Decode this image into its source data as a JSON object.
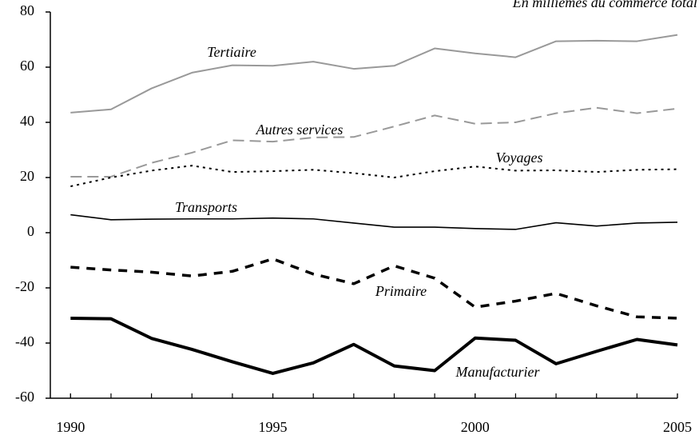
{
  "chart_data": {
    "type": "line",
    "subtitle": "En millièmes du commerce total",
    "x": [
      1990,
      1991,
      1992,
      1993,
      1994,
      1995,
      1996,
      1997,
      1998,
      1999,
      2000,
      2001,
      2002,
      2003,
      2004,
      2005
    ],
    "series": [
      {
        "name": "Tertiaire",
        "color": "#999999",
        "values": [
          43.5,
          44.7,
          52.3,
          58,
          60.7,
          60.5,
          62,
          59.4,
          60.5,
          66.8,
          65,
          63.6,
          69.4,
          69.6,
          69.4,
          71.7
        ]
      },
      {
        "name": "Autres services",
        "color": "#999999",
        "values": [
          20.3,
          20.3,
          25.3,
          29,
          33.5,
          33,
          34.5,
          34.7,
          38.5,
          42.5,
          39.5,
          40,
          43.3,
          45.3,
          43.3,
          45
        ]
      },
      {
        "name": "Voyages",
        "color": "#000000",
        "values": [
          16.8,
          20,
          22.5,
          24.3,
          22,
          22.3,
          22.8,
          21.6,
          20,
          22.3,
          24,
          22.5,
          22.6,
          22,
          22.8,
          23
        ]
      },
      {
        "name": "Transports",
        "color": "#000000",
        "values": [
          6.5,
          4.7,
          4.9,
          5,
          5,
          5.3,
          5,
          3.5,
          2,
          2,
          1.5,
          1.2,
          3.6,
          2.4,
          3.5,
          3.8
        ]
      },
      {
        "name": "Primaire",
        "color": "#000000",
        "values": [
          -12.5,
          -13.5,
          -14.3,
          -15.7,
          -14,
          -9.5,
          -15,
          -18.5,
          -12,
          -16.5,
          -27,
          -24.8,
          -22,
          -26.5,
          -30.5,
          -31
        ]
      },
      {
        "name": "Manufacturier",
        "color": "#000000",
        "values": [
          -31,
          -31.2,
          -38.3,
          -42.3,
          -46.8,
          -51,
          -47.2,
          -40.5,
          -48.3,
          -50,
          -38.2,
          -39,
          -47.5,
          -43,
          -38.7,
          -40.7
        ]
      }
    ],
    "xlim": [
      1989.5,
      2005
    ],
    "xticks": [
      1990,
      1995,
      2000,
      2005
    ],
    "ylim": [
      -60,
      80
    ],
    "yticks": [
      -60,
      -40,
      -20,
      0,
      20,
      40,
      60,
      80
    ]
  }
}
